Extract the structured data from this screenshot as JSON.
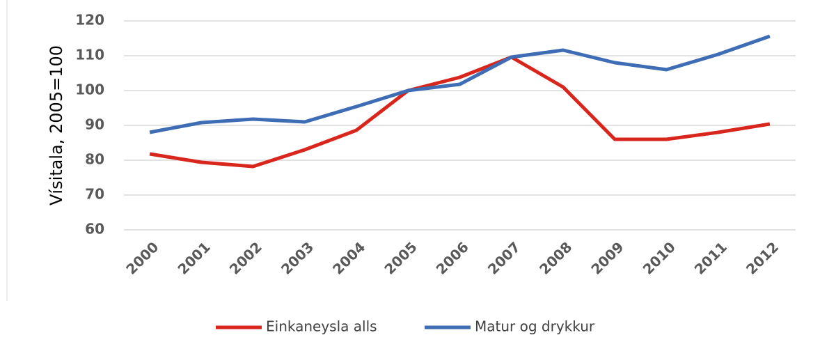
{
  "chart_data": {
    "type": "line",
    "y_label": "Vísitala, 2005=100",
    "categories": [
      "2000",
      "2001",
      "2002",
      "2003",
      "2004",
      "2005",
      "2006",
      "2007",
      "2008",
      "2009",
      "2010",
      "2011",
      "2012"
    ],
    "series": [
      {
        "name": "Einkaneysla alls",
        "color": "#d9261c",
        "values": [
          81.8,
          79.4,
          78.2,
          83,
          88.6,
          100,
          103.8,
          109.6,
          101,
          86,
          86,
          88,
          90.4
        ]
      },
      {
        "name": "Matur og drykkur",
        "color": "#3e6db5",
        "values": [
          88,
          90.8,
          91.8,
          91,
          95.4,
          100,
          101.8,
          109.6,
          111.6,
          108,
          106,
          110.4,
          115.6
        ]
      }
    ],
    "ylim": [
      60,
      120
    ],
    "yticks": [
      60,
      70,
      80,
      90,
      100,
      110,
      120
    ],
    "grid": true,
    "legend": "bottom"
  }
}
